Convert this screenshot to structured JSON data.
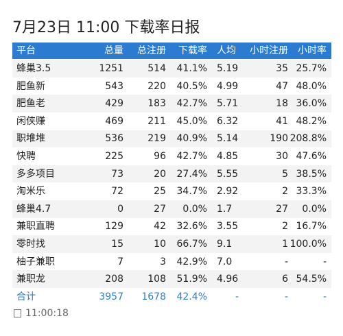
{
  "title": "7月23日 11:00 下载率日报",
  "table": {
    "header": [
      "平台",
      "总量",
      "总注册",
      "下载率",
      "人均",
      "小时注册",
      "小时率"
    ],
    "rows": [
      [
        "蜂巢3.5",
        "1251",
        "514",
        "41.1%",
        "5.19",
        "35",
        "25.7%"
      ],
      [
        "肥鱼新",
        "543",
        "220",
        "40.5%",
        "4.99",
        "47",
        "48.0%"
      ],
      [
        "肥鱼老",
        "429",
        "183",
        "42.7%",
        "5.71",
        "18",
        "36.0%"
      ],
      [
        "闲侠赚",
        "469",
        "211",
        "45.0%",
        "6.32",
        "41",
        "48.2%"
      ],
      [
        "职堆堆",
        "536",
        "219",
        "40.9%",
        "5.14",
        "190",
        "208.8%"
      ],
      [
        "快聘",
        "225",
        "96",
        "42.7%",
        "4.85",
        "30",
        "47.6%"
      ],
      [
        "多多项目",
        "73",
        "20",
        "27.4%",
        "5.55",
        "5",
        "38.5%"
      ],
      [
        "淘米乐",
        "72",
        "25",
        "34.7%",
        "2.92",
        "2",
        "33.3%"
      ],
      [
        "蜂巢4.7",
        "0",
        "27",
        "0.0%",
        "1.7",
        "27",
        "0.0%"
      ],
      [
        "兼职直聘",
        "129",
        "42",
        "32.6%",
        "3.55",
        "2",
        "16.7%"
      ],
      [
        "零时找",
        "15",
        "10",
        "66.7%",
        "9.1",
        "1",
        "100.0%"
      ],
      [
        "柚子兼职",
        "7",
        "3",
        "42.9%",
        "7.0",
        "-",
        "-"
      ],
      [
        "兼职龙",
        "208",
        "108",
        "51.9%",
        "4.96",
        "6",
        "54.5%"
      ]
    ],
    "total": [
      "合计",
      "3957",
      "1678",
      "42.4%",
      "-",
      "-",
      "-"
    ]
  },
  "footer": {
    "time": "11:00:18"
  }
}
